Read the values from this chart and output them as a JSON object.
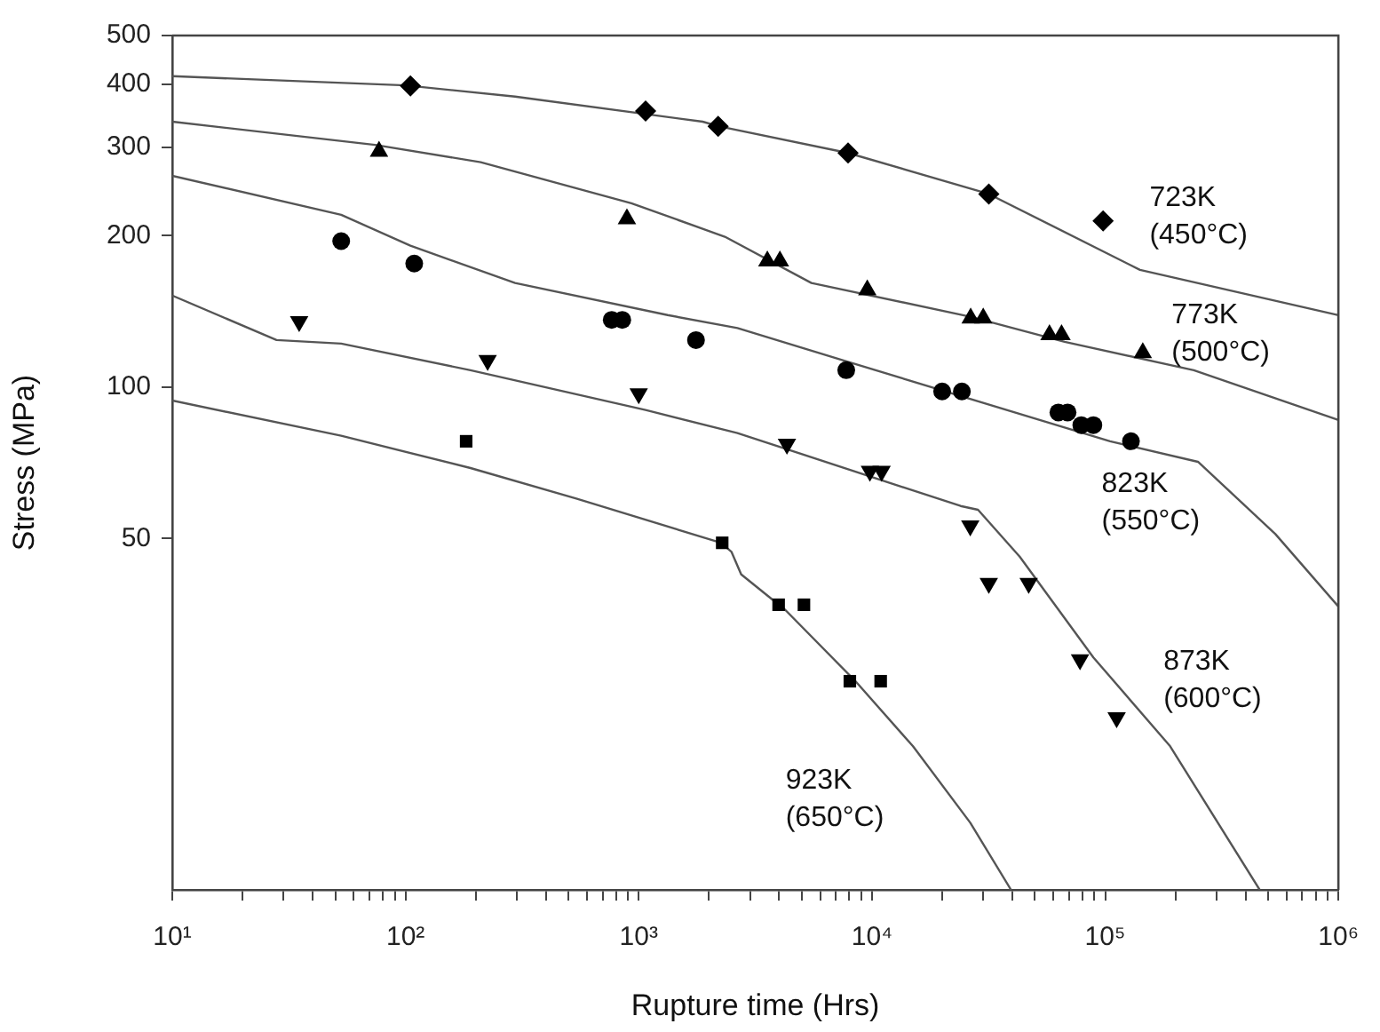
{
  "chart_data": {
    "type": "scatter",
    "xlabel": "Rupture time (Hrs)",
    "ylabel": "Stress (MPa)",
    "log": "xy",
    "xlim": [
      10,
      1000000
    ],
    "ylim": [
      10,
      500
    ],
    "xticks": [
      {
        "value": 10,
        "label": "10¹"
      },
      {
        "value": 20,
        "label": null
      },
      {
        "value": 30,
        "label": null
      },
      {
        "value": 40,
        "label": null
      },
      {
        "value": 50,
        "label": null
      },
      {
        "value": 60,
        "label": null
      },
      {
        "value": 70,
        "label": null
      },
      {
        "value": 80,
        "label": null
      },
      {
        "value": 90,
        "label": null
      },
      {
        "value": 100,
        "label": "10²"
      },
      {
        "value": 200,
        "label": null
      },
      {
        "value": 300,
        "label": null
      },
      {
        "value": 400,
        "label": null
      },
      {
        "value": 500,
        "label": null
      },
      {
        "value": 600,
        "label": null
      },
      {
        "value": 700,
        "label": null
      },
      {
        "value": 800,
        "label": null
      },
      {
        "value": 900,
        "label": null
      },
      {
        "value": 1000,
        "label": "10³"
      },
      {
        "value": 2000,
        "label": null
      },
      {
        "value": 3000,
        "label": null
      },
      {
        "value": 4000,
        "label": null
      },
      {
        "value": 5000,
        "label": null
      },
      {
        "value": 6000,
        "label": null
      },
      {
        "value": 7000,
        "label": null
      },
      {
        "value": 8000,
        "label": null
      },
      {
        "value": 9000,
        "label": null
      },
      {
        "value": 10000,
        "label": "10⁴"
      },
      {
        "value": 20000,
        "label": null
      },
      {
        "value": 30000,
        "label": null
      },
      {
        "value": 40000,
        "label": null
      },
      {
        "value": 50000,
        "label": null
      },
      {
        "value": 60000,
        "label": null
      },
      {
        "value": 70000,
        "label": null
      },
      {
        "value": 80000,
        "label": null
      },
      {
        "value": 90000,
        "label": null
      },
      {
        "value": 100000,
        "label": "10⁵"
      },
      {
        "value": 200000,
        "label": null
      },
      {
        "value": 300000,
        "label": null
      },
      {
        "value": 400000,
        "label": null
      },
      {
        "value": 500000,
        "label": null
      },
      {
        "value": 600000,
        "label": null
      },
      {
        "value": 700000,
        "label": null
      },
      {
        "value": 800000,
        "label": null
      },
      {
        "value": 900000,
        "label": null
      },
      {
        "value": 1000000,
        "label": "10⁶"
      }
    ],
    "yticks": [
      50,
      100,
      200,
      300,
      400,
      500
    ],
    "series": [
      {
        "type": "scatter",
        "color": "#000000",
        "marker": "diamond",
        "x": [
          105,
          1070,
          2190,
          7900,
          31700,
          98000
        ],
        "values": [
          397,
          354,
          330,
          292,
          242,
          214
        ]
      },
      {
        "type": "scatter",
        "color": "#000000",
        "marker": "triangle",
        "x": [
          77,
          890,
          3560,
          4030,
          9550,
          26500,
          30000,
          57700,
          65000,
          145000
        ],
        "values": [
          294,
          216,
          178,
          178,
          156,
          137,
          137,
          127,
          127,
          117
        ]
      },
      {
        "type": "scatter",
        "color": "#000000",
        "marker": "circle",
        "x": [
          53,
          109,
          766,
          850,
          1760,
          7760,
          20000,
          24300,
          63000,
          69000,
          79000,
          89000,
          129000
        ],
        "values": [
          195,
          176,
          136,
          136,
          124,
          108,
          98,
          98,
          89,
          89,
          84,
          84,
          78
        ]
      },
      {
        "type": "scatter",
        "color": "#000000",
        "marker": "triangle-down",
        "x": [
          35,
          225,
          1000,
          4320,
          9800,
          11000,
          26400,
          31700,
          47000,
          78000,
          112000
        ],
        "values": [
          135,
          113,
          97,
          77,
          68,
          68,
          53,
          40.7,
          40.7,
          28.7,
          22
        ]
      },
      {
        "type": "scatter",
        "color": "#000000",
        "marker": "square",
        "x": [
          182,
          2280,
          3980,
          5110,
          8040,
          10900
        ],
        "values": [
          78,
          49,
          36.9,
          36.9,
          26,
          26
        ]
      },
      {
        "type": "line",
        "color": "#555555",
        "marker": "none",
        "x": [
          10,
          100,
          295,
          1880,
          2200,
          7900,
          31700,
          141000,
          1000000
        ],
        "values": [
          415,
          398,
          378,
          337,
          330,
          292,
          242,
          171,
          139
        ]
      },
      {
        "type": "line",
        "color": "#555555",
        "marker": "none",
        "x": [
          10,
          74,
          210,
          930,
          2340,
          5500,
          26400,
          67000,
          240000,
          1000000
        ],
        "values": [
          337,
          303,
          280,
          232,
          199,
          161,
          138,
          123,
          108,
          86
        ]
      },
      {
        "type": "line",
        "color": "#555555",
        "marker": "none",
        "x": [
          10,
          53,
          105,
          295,
          1330,
          2650,
          7500,
          105000,
          250000,
          537000,
          1000000
        ],
        "values": [
          263,
          220,
          191,
          161,
          139,
          131,
          113,
          78,
          71,
          51,
          36.6
        ]
      },
      {
        "type": "line",
        "color": "#555555",
        "marker": "none",
        "x": [
          10,
          28,
          53,
          190,
          1070,
          2650,
          24000,
          28500,
          43000,
          89000,
          190000,
          460000
        ],
        "values": [
          152,
          124,
          122,
          108,
          90,
          81,
          58,
          57,
          46,
          29,
          19.3,
          10
        ]
      },
      {
        "type": "line",
        "color": "#555555",
        "marker": "none",
        "x": [
          10,
          53,
          190,
          540,
          2250,
          2500,
          2750,
          4260,
          8500,
          15000,
          26400,
          39500
        ],
        "values": [
          94,
          80,
          69,
          60,
          49,
          47,
          42.4,
          36,
          26,
          19.3,
          13.6,
          10
        ]
      }
    ],
    "annotations": [
      "723K (450°C)",
      "773K (500°C)",
      "823K (550°C)",
      "873K (600°C)",
      "923K (650°C)"
    ]
  }
}
